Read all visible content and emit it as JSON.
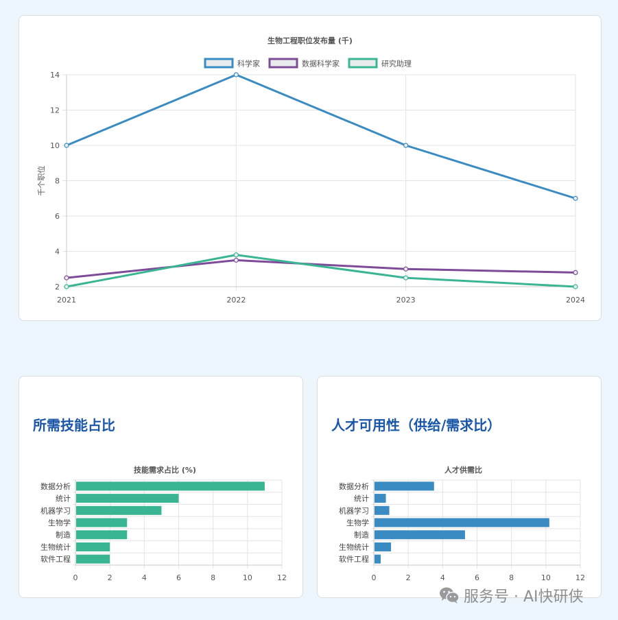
{
  "line_card": {
    "title": "生物工程职位发布量 (千)",
    "ylabel": "千个职位",
    "legend": [
      {
        "label": "科学家",
        "color": "#3a8bc2"
      },
      {
        "label": "数据科学家",
        "color": "#7d4b98"
      },
      {
        "label": "研究助理",
        "color": "#3ab594"
      }
    ],
    "x_ticks": [
      "2021",
      "2022",
      "2023",
      "2024"
    ],
    "y_ticks": [
      "2",
      "4",
      "6",
      "8",
      "10",
      "12",
      "14"
    ]
  },
  "skills_card": {
    "section_title": "所需技能占比",
    "chart_title": "技能需求占比 (%)",
    "bar_color": "#3ab594",
    "categories": [
      "数据分析",
      "统计",
      "机器学习",
      "生物学",
      "制造",
      "生物统计",
      "软件工程"
    ],
    "x_ticks": [
      "0",
      "2",
      "4",
      "6",
      "8",
      "10",
      "12"
    ]
  },
  "talent_card": {
    "section_title": "人才可用性（供给/需求比）",
    "chart_title": "人才供需比",
    "bar_color": "#3a8bc2",
    "categories": [
      "数据分析",
      "统计",
      "机器学习",
      "生物学",
      "制造",
      "生物统计",
      "软件工程"
    ],
    "x_ticks": [
      "0",
      "2",
      "4",
      "6",
      "8",
      "10",
      "12"
    ]
  },
  "watermark": {
    "text": "服务号 · AI快研侠"
  },
  "chart_data": [
    {
      "type": "line",
      "title": "生物工程职位发布量 (千)",
      "xlabel": "",
      "ylabel": "千个职位",
      "x": [
        "2021",
        "2022",
        "2023",
        "2024"
      ],
      "series": [
        {
          "name": "科学家",
          "values": [
            10,
            14,
            10,
            7
          ],
          "color": "#3a8bc2"
        },
        {
          "name": "数据科学家",
          "values": [
            2.5,
            3.5,
            3.0,
            2.8
          ],
          "color": "#7d4b98"
        },
        {
          "name": "研究助理",
          "values": [
            2.0,
            3.8,
            2.5,
            2.0
          ],
          "color": "#3ab594"
        }
      ],
      "ylim": [
        2,
        14
      ],
      "grid": true,
      "legend_position": "top"
    },
    {
      "type": "bar",
      "orientation": "horizontal",
      "title": "技能需求占比 (%)",
      "categories": [
        "数据分析",
        "统计",
        "机器学习",
        "生物学",
        "制造",
        "生物统计",
        "软件工程"
      ],
      "values": [
        11,
        6,
        5,
        3,
        3,
        2,
        2
      ],
      "xlim": [
        0,
        12
      ],
      "grid": true,
      "color": "#3ab594"
    },
    {
      "type": "bar",
      "orientation": "horizontal",
      "title": "人才供需比",
      "categories": [
        "数据分析",
        "统计",
        "机器学习",
        "生物学",
        "制造",
        "生物统计",
        "软件工程"
      ],
      "values": [
        3.5,
        0.7,
        0.9,
        10.2,
        5.3,
        1.0,
        0.4
      ],
      "xlim": [
        0,
        12
      ],
      "grid": true,
      "color": "#3a8bc2"
    }
  ]
}
